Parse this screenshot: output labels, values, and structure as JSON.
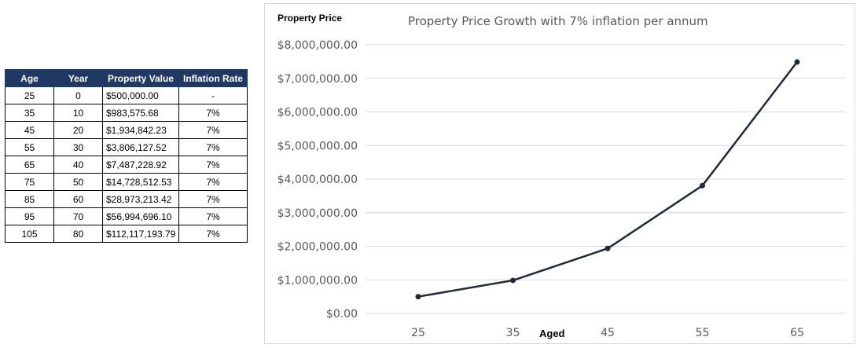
{
  "table": {
    "headers": [
      "Age",
      "Year",
      "Property Value",
      "Inflation Rate"
    ],
    "rows": [
      [
        "25",
        "0",
        "$500,000.00",
        "-"
      ],
      [
        "35",
        "10",
        "$983,575.68",
        "7%"
      ],
      [
        "45",
        "20",
        "$1,934,842.23",
        "7%"
      ],
      [
        "55",
        "30",
        "$3,806,127.52",
        "7%"
      ],
      [
        "65",
        "40",
        "$7,487,228.92",
        "7%"
      ],
      [
        "75",
        "50",
        "$14,728,512.53",
        "7%"
      ],
      [
        "85",
        "60",
        "$28,973,213.42",
        "7%"
      ],
      [
        "95",
        "70",
        "$56,994,696.10",
        "7%"
      ],
      [
        "105",
        "80",
        "$112,117,193.79",
        "7%"
      ]
    ]
  },
  "chart_data": {
    "type": "line",
    "title": "Property Price Growth with 7% inflation per annum",
    "ylabel": "Property Price",
    "xlabel": "Aged",
    "categories": [
      "25",
      "35",
      "45",
      "55",
      "65"
    ],
    "series": [
      {
        "values": [
          500000,
          983575.68,
          1934842.23,
          3806127.52,
          7487228.92
        ]
      }
    ],
    "ylim": [
      0,
      8000000
    ],
    "yticks": [
      0,
      1000000,
      2000000,
      3000000,
      4000000,
      5000000,
      6000000,
      7000000,
      8000000
    ],
    "ytick_labels": [
      "$0.00",
      "$1,000,000.00",
      "$2,000,000.00",
      "$3,000,000.00",
      "$4,000,000.00",
      "$5,000,000.00",
      "$6,000,000.00",
      "$7,000,000.00",
      "$8,000,000.00"
    ],
    "grid": true,
    "legend": "none",
    "colors": {
      "line": "#1f2a3c",
      "grid": "#d9d9d9",
      "tick_text": "#595959"
    }
  }
}
